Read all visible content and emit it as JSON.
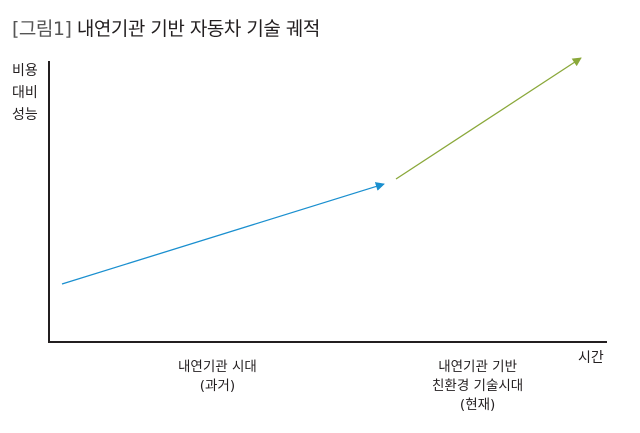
{
  "title": {
    "tag": "[그림1]",
    "text": "내연기관 기반 자동차 기술 궤적"
  },
  "y_axis_label": [
    "비용",
    "대비",
    "성능"
  ],
  "x_axis_label": "시간",
  "categories": [
    {
      "lines": [
        "내연기관 시대",
        "(과거)"
      ]
    },
    {
      "lines": [
        "내연기관 기반",
        "친환경 기술시대",
        "(현재)"
      ]
    }
  ],
  "colors": {
    "axis": "#231f20",
    "past_arrow": "#1a8fcf",
    "present_arrow": "#8aa83a"
  }
}
